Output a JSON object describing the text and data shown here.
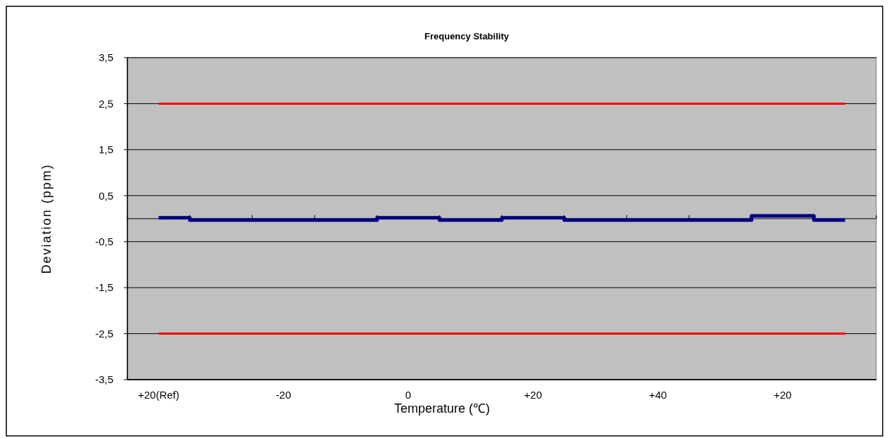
{
  "chart_data": {
    "type": "line",
    "title": "Frequency Stability",
    "xlabel": "Temperature (℃)",
    "ylabel": "Deviation (ppm)",
    "categories": [
      "+20(Ref)",
      null,
      "-20",
      null,
      "0",
      null,
      "+20",
      null,
      "+40",
      null,
      "+20",
      null
    ],
    "series": [
      {
        "type": "step",
        "color": "#000080",
        "values": [
          0.02,
          -0.03,
          -0.03,
          -0.03,
          0.02,
          -0.03,
          0.02,
          -0.03,
          -0.03,
          -0.03,
          0.06,
          -0.03
        ]
      },
      {
        "color": "#ff0000",
        "values": [
          2.5,
          2.5,
          2.5,
          2.5,
          2.5,
          2.5,
          2.5,
          2.5,
          2.5,
          2.5,
          2.5,
          2.5
        ]
      },
      {
        "color": "#ff0000",
        "values": [
          -2.5,
          -2.5,
          -2.5,
          -2.5,
          -2.5,
          -2.5,
          -2.5,
          -2.5,
          -2.5,
          -2.5,
          -2.5,
          -2.5
        ]
      }
    ],
    "ylim": [
      -3.5,
      3.5
    ],
    "yticks": [
      {
        "value": -3.5,
        "label": "-3,5"
      },
      {
        "value": -2.5,
        "label": "-2,5"
      },
      {
        "value": -1.5,
        "label": "-1,5"
      },
      {
        "value": -0.5,
        "label": "-0,5"
      },
      {
        "value": 0.5,
        "label": "0,5"
      },
      {
        "value": 1.5,
        "label": "1,5"
      },
      {
        "value": 2.5,
        "label": "2,5"
      },
      {
        "value": 3.5,
        "label": "3,5"
      }
    ],
    "grid": "y",
    "marker": "none",
    "line_style": "solid"
  }
}
